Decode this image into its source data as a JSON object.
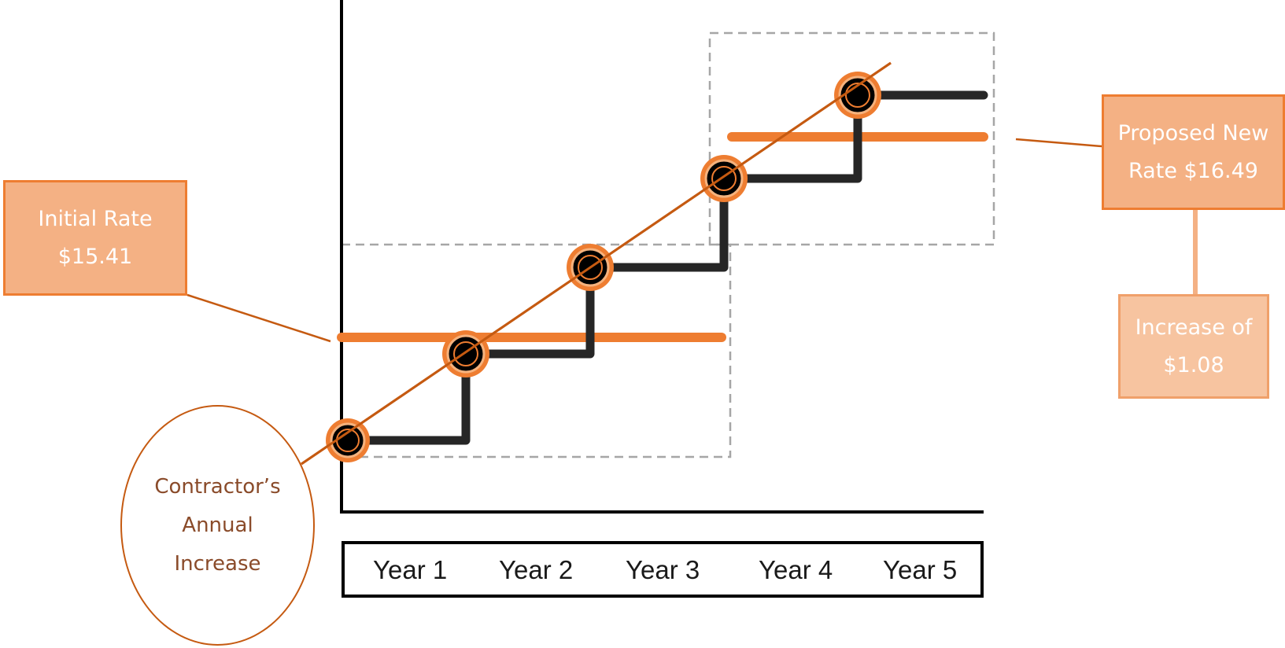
{
  "callouts": {
    "initial_rate": {
      "line1": "Initial Rate",
      "line2": "$15.41"
    },
    "proposed_rate": {
      "line1": "Proposed New",
      "line2": "Rate $16.49"
    },
    "increase": {
      "line1": "Increase of",
      "line2": "$1.08"
    },
    "contractor": {
      "line1": "Contractor’s",
      "line2": "Annual",
      "line3": "Increase"
    }
  },
  "years": [
    "Year 1",
    "Year 2",
    "Year 3",
    "Year 4",
    "Year 5"
  ],
  "colors": {
    "orange": "#ee7d31",
    "dark_orange": "#c55a11",
    "step": "#262626",
    "axis": "#000000",
    "dash": "#a6a6a6"
  }
}
